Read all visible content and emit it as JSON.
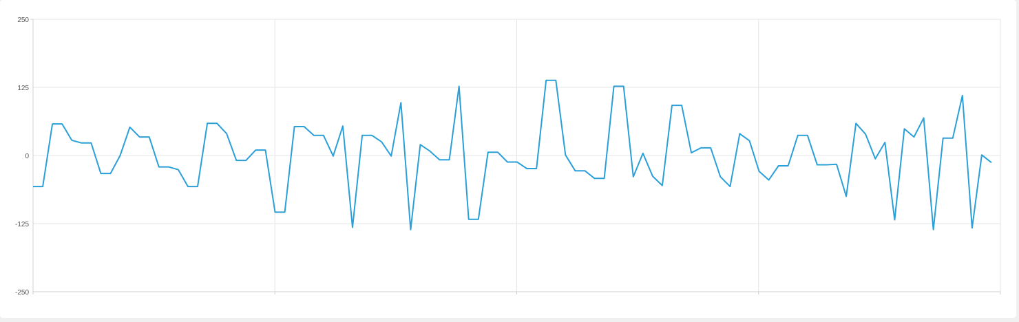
{
  "colors": {
    "series": "#2a9fd8",
    "grid": "#e6e6e6",
    "axis": "#d0d0d0",
    "background": "#ffffff"
  },
  "chart_data": {
    "type": "line",
    "title": "",
    "xlabel": "",
    "ylabel": "",
    "ylim": [
      -250,
      250
    ],
    "y_ticks": [
      "250",
      "125",
      "0",
      "-125",
      "-250"
    ],
    "y_tick_values": [
      250,
      125,
      0,
      -125,
      -250
    ],
    "x_gridline_count": 4,
    "grid": true,
    "series": [
      {
        "values": [
          -57,
          -57,
          58,
          58,
          28,
          23,
          23,
          -33,
          -33,
          0,
          52,
          34,
          34,
          -21,
          -21,
          -26,
          -57,
          -57,
          59,
          59,
          40,
          -9,
          -9,
          10,
          10,
          -104,
          -104,
          53,
          53,
          37,
          37,
          -1,
          54,
          -132,
          37,
          37,
          25,
          -1,
          97,
          -136,
          20,
          8,
          -8,
          -8,
          127,
          -117,
          -117,
          6,
          6,
          -12,
          -12,
          -24,
          -24,
          138,
          138,
          1,
          -28,
          -28,
          -42,
          -42,
          127,
          127,
          -39,
          4,
          -38,
          -55,
          92,
          92,
          5,
          14,
          14,
          -39,
          -57,
          40,
          27,
          -29,
          -45,
          -19,
          -19,
          37,
          37,
          -17,
          -17,
          -16,
          -75,
          59,
          39,
          -6,
          24,
          -118,
          49,
          34,
          69,
          -136,
          32,
          32,
          110,
          -133,
          1,
          -13
        ]
      }
    ]
  }
}
